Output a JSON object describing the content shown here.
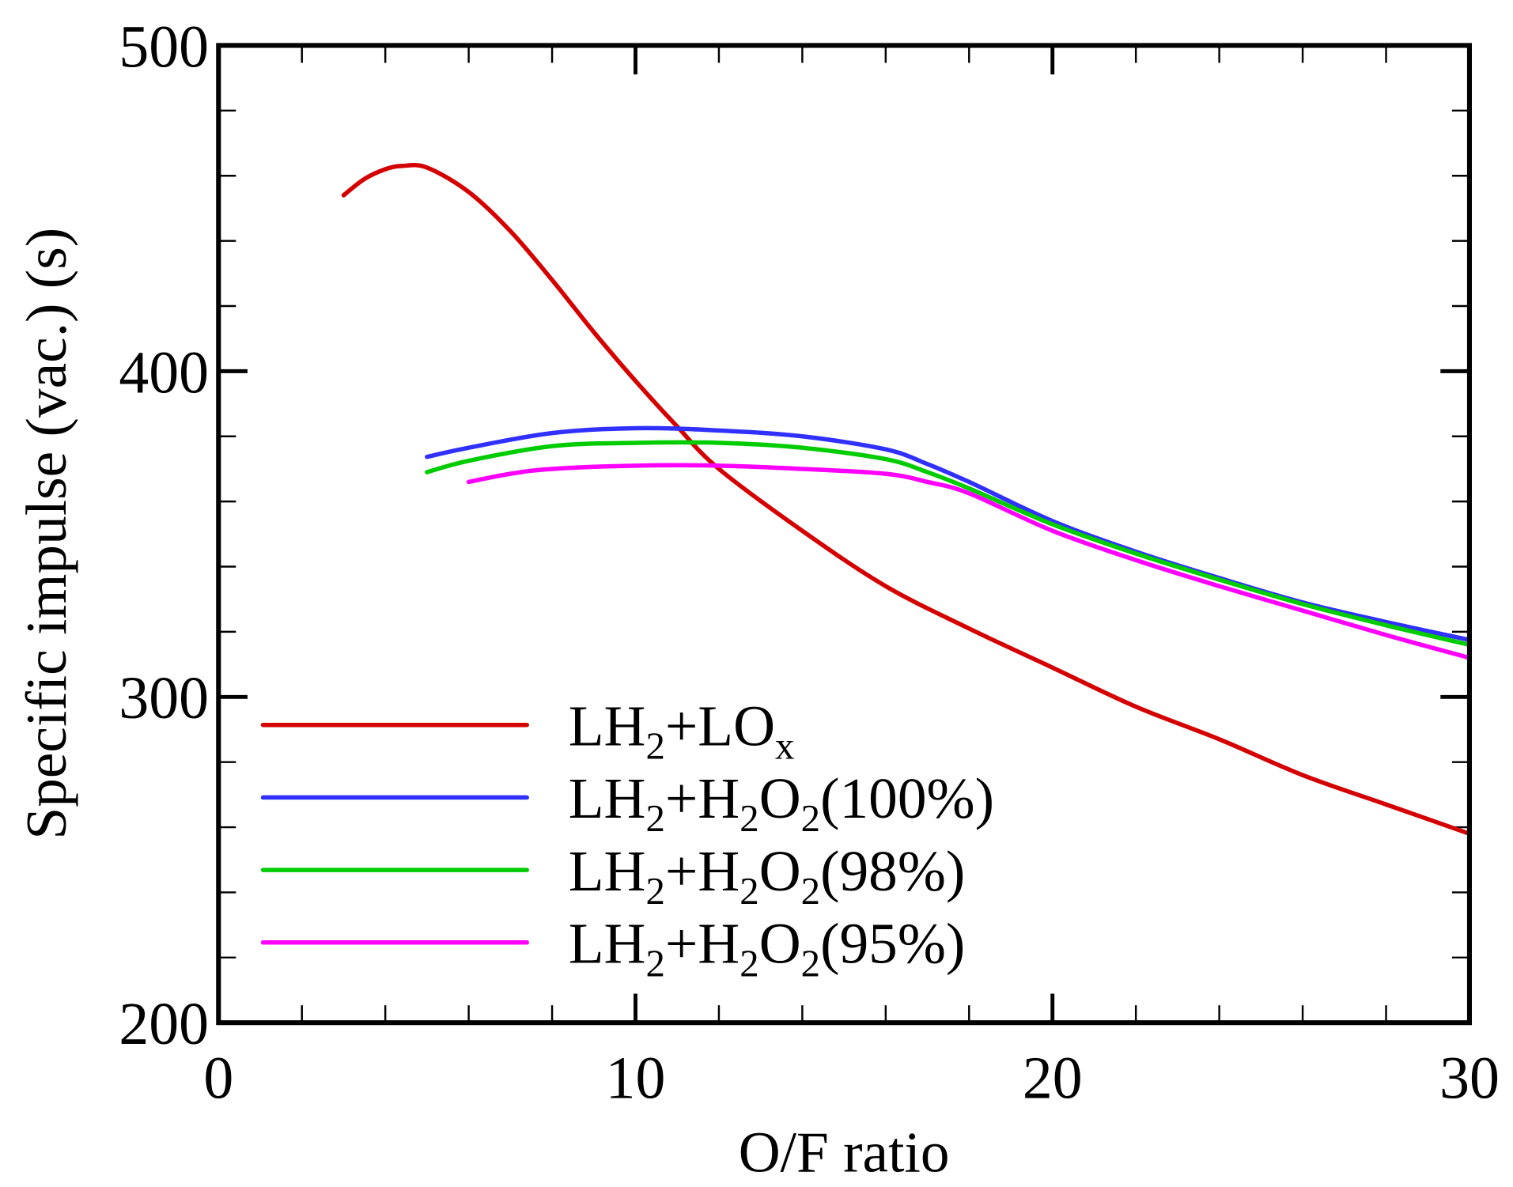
{
  "chart_data": {
    "type": "line",
    "title": "",
    "xlabel": "O/F ratio",
    "ylabel": "Specific impulse (vac.) (s)",
    "xlim": [
      0,
      30
    ],
    "ylim": [
      200,
      500
    ],
    "x_ticks": [
      "0",
      "10",
      "20",
      "30"
    ],
    "y_ticks": [
      "200",
      "300",
      "400",
      "500"
    ],
    "x_minor_step": 2,
    "y_minor_step": 20,
    "grid": false,
    "legend_position": "bottom-left",
    "series": [
      {
        "name": "LH2+LOx",
        "label_parts": [
          {
            "t": "LH"
          },
          {
            "sub": "2"
          },
          {
            "t": "+LO"
          },
          {
            "sub": "x"
          }
        ],
        "color": "#d40000",
        "x": [
          3,
          3.5,
          4,
          4.4,
          5,
          6,
          7,
          8,
          9,
          10,
          11,
          12,
          14,
          16,
          18,
          20,
          22,
          24,
          26,
          28,
          30
        ],
        "y": [
          454,
          459,
          462,
          463,
          462.5,
          455,
          443,
          428,
          412,
          397,
          383,
          370,
          351,
          334,
          321,
          309,
          297,
          287,
          276,
          267,
          258
        ]
      },
      {
        "name": "LH2+H2O2(100%)",
        "label_parts": [
          {
            "t": "LH"
          },
          {
            "sub": "2"
          },
          {
            "t": "+H"
          },
          {
            "sub": "2"
          },
          {
            "t": "O"
          },
          {
            "sub": "2"
          },
          {
            "t": "(100%)"
          }
        ],
        "color": "#3030ff",
        "x": [
          5,
          6,
          8,
          10,
          12,
          14,
          16,
          17,
          18,
          20,
          22,
          24,
          26,
          28,
          30
        ],
        "y": [
          373.7,
          376.5,
          381,
          382.5,
          381.8,
          380,
          376,
          371.5,
          366,
          354,
          344.6,
          336.5,
          329,
          323,
          317.5
        ]
      },
      {
        "name": "LH2+H2O2(98%)",
        "label_parts": [
          {
            "t": "LH"
          },
          {
            "sub": "2"
          },
          {
            "t": "+H"
          },
          {
            "sub": "2"
          },
          {
            "t": "O"
          },
          {
            "sub": "2"
          },
          {
            "t": "(98%)"
          }
        ],
        "color": "#00cc00",
        "x": [
          5,
          6,
          8,
          10,
          12,
          14,
          16,
          17,
          18,
          20,
          22,
          24,
          26,
          28,
          30
        ],
        "y": [
          369,
          372.5,
          377,
          378,
          378,
          376.5,
          373,
          369,
          364,
          353,
          344,
          336,
          328.5,
          322,
          316
        ]
      },
      {
        "name": "LH2+H2O2(95%)",
        "label_parts": [
          {
            "t": "LH"
          },
          {
            "sub": "2"
          },
          {
            "t": "+H"
          },
          {
            "sub": "2"
          },
          {
            "t": "O"
          },
          {
            "sub": "2"
          },
          {
            "t": "(95%)"
          }
        ],
        "color": "#ff00ff",
        "x": [
          6,
          7,
          8,
          10,
          12,
          14,
          16,
          17,
          18,
          20,
          22,
          24,
          26,
          28,
          30
        ],
        "y": [
          366,
          368.5,
          370,
          371,
          371,
          370,
          368.5,
          366,
          362.5,
          351,
          342,
          334,
          326.5,
          319,
          312
        ]
      }
    ]
  }
}
